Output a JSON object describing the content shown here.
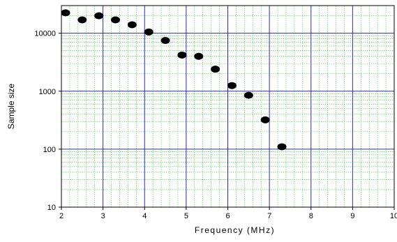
{
  "chart_data": {
    "type": "scatter",
    "title": "",
    "xlabel": "Frequency (MHz)",
    "ylabel": "Sample size",
    "xlim": [
      2,
      10
    ],
    "ylim": [
      10,
      30000
    ],
    "yscale": "log",
    "grid": true,
    "x_ticks": [
      "2",
      "3",
      "4",
      "5",
      "6",
      "7",
      "8",
      "9",
      "10"
    ],
    "y_ticks": [
      "10",
      "100",
      "1000",
      "10000"
    ],
    "colors": {
      "major_grid": "#2b2bb0",
      "minor_grid": "#33cc33",
      "marker": "#000000"
    },
    "series": [
      {
        "x": [
          2.1,
          2.5,
          2.9,
          3.3,
          3.7,
          4.1,
          4.5,
          4.9,
          5.3,
          5.7,
          6.1,
          6.5,
          6.9,
          7.3
        ],
        "y": [
          22500,
          17000,
          20000,
          17000,
          14000,
          10500,
          7500,
          4200,
          4000,
          2400,
          1250,
          850,
          320,
          110
        ]
      }
    ]
  }
}
